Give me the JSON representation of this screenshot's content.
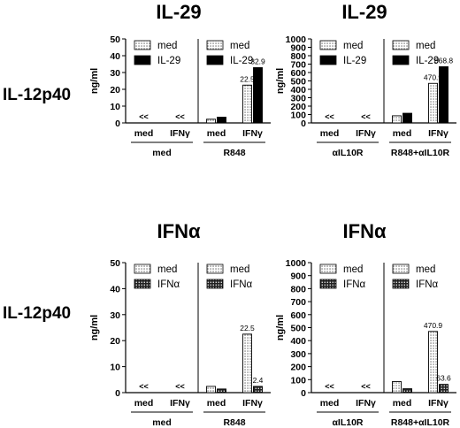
{
  "titles": {
    "top_left": "IL-29",
    "top_right": "IL-29",
    "bottom_left": "IFNα",
    "bottom_right": "IFNα"
  },
  "row_labels": {
    "top": "IL-12p40",
    "bottom": "IL-12p40"
  },
  "colors": {
    "bar_black": "#000000",
    "bar_white": "#ffffff"
  },
  "chart_data": [
    {
      "type": "bar",
      "ylabel": "ng/ml",
      "ylim": [
        0,
        50
      ],
      "yticks": [
        "0",
        "10",
        "20",
        "30",
        "40",
        "50"
      ],
      "legend": [
        {
          "label": "med",
          "pattern": "dots"
        },
        {
          "label": "IL-29",
          "pattern": "black"
        }
      ],
      "groups": [
        {
          "label": "med",
          "categories": [
            "med",
            "IFNγ"
          ],
          "series": [
            {
              "name": "med",
              "values": [
                0,
                0
              ]
            },
            {
              "name": "IL-29",
              "values": [
                0,
                0
              ]
            }
          ],
          "below_detection": [
            "<<",
            "<<"
          ],
          "data_labels": [
            null,
            null,
            null,
            null
          ]
        },
        {
          "label": "R848",
          "categories": [
            "med",
            "IFNγ"
          ],
          "series": [
            {
              "name": "med",
              "values": [
                2.2,
                22.5
              ]
            },
            {
              "name": "IL-29",
              "values": [
                3.4,
                32.9
              ]
            }
          ],
          "data_labels": [
            null,
            null,
            "22.5",
            "32.9"
          ]
        }
      ]
    },
    {
      "type": "bar",
      "ylabel": "ng/ml",
      "ylim": [
        0,
        1000
      ],
      "yticks": [
        "0",
        "100",
        "200",
        "300",
        "400",
        "500",
        "600",
        "700",
        "800",
        "900",
        "1000"
      ],
      "legend": [
        {
          "label": "med",
          "pattern": "dots"
        },
        {
          "label": "IL-29",
          "pattern": "black"
        }
      ],
      "groups": [
        {
          "label": "αIL10R",
          "categories": [
            "med",
            "IFNγ"
          ],
          "series": [
            {
              "name": "med",
              "values": [
                0,
                0
              ]
            },
            {
              "name": "IL-29",
              "values": [
                0,
                0
              ]
            }
          ],
          "below_detection": [
            "<<",
            "<<"
          ],
          "data_labels": [
            null,
            null,
            null,
            null
          ]
        },
        {
          "label": "R848+αIL10R",
          "categories": [
            "med",
            "IFNγ"
          ],
          "series": [
            {
              "name": "med",
              "values": [
                85,
                470.9
              ]
            },
            {
              "name": "IL-29",
              "values": [
                115,
                668.8
              ]
            }
          ],
          "data_labels": [
            null,
            null,
            "470.9",
            "668.8"
          ]
        }
      ]
    },
    {
      "type": "bar",
      "ylabel": "ng/ml",
      "ylim": [
        0,
        50
      ],
      "yticks": [
        "0",
        "10",
        "20",
        "30",
        "40",
        "50"
      ],
      "legend": [
        {
          "label": "med",
          "pattern": "dots"
        },
        {
          "label": "IFNα",
          "pattern": "grid"
        }
      ],
      "groups": [
        {
          "label": "med",
          "categories": [
            "med",
            "IFNγ"
          ],
          "series": [
            {
              "name": "med",
              "values": [
                0,
                0
              ]
            },
            {
              "name": "IFNα",
              "values": [
                0,
                0
              ]
            }
          ],
          "below_detection": [
            "<<",
            "<<"
          ],
          "data_labels": [
            null,
            null,
            null,
            null
          ]
        },
        {
          "label": "R848",
          "categories": [
            "med",
            "IFNγ"
          ],
          "series": [
            {
              "name": "med",
              "values": [
                2.4,
                22.5
              ]
            },
            {
              "name": "IFNα",
              "values": [
                1.4,
                2.4
              ]
            }
          ],
          "data_labels": [
            null,
            null,
            "22.5",
            "2.4"
          ]
        }
      ]
    },
    {
      "type": "bar",
      "ylabel": "ng/ml",
      "ylim": [
        0,
        1000
      ],
      "yticks": [
        "0",
        "100",
        "200",
        "300",
        "400",
        "500",
        "600",
        "700",
        "800",
        "900",
        "1000"
      ],
      "legend": [
        {
          "label": "med",
          "pattern": "dots"
        },
        {
          "label": "IFNα",
          "pattern": "grid"
        }
      ],
      "groups": [
        {
          "label": "αIL10R",
          "categories": [
            "med",
            "IFNγ"
          ],
          "series": [
            {
              "name": "med",
              "values": [
                0,
                0
              ]
            },
            {
              "name": "IFNα",
              "values": [
                0,
                0
              ]
            }
          ],
          "below_detection": [
            "<<",
            "<<"
          ],
          "data_labels": [
            null,
            null,
            null,
            null
          ]
        },
        {
          "label": "R848+αIL10R",
          "categories": [
            "med",
            "IFNγ"
          ],
          "series": [
            {
              "name": "med",
              "values": [
                85,
                470.9
              ]
            },
            {
              "name": "IFNα",
              "values": [
                30,
                63.6
              ]
            }
          ],
          "data_labels": [
            null,
            null,
            "470.9",
            "63.6"
          ]
        }
      ]
    }
  ]
}
